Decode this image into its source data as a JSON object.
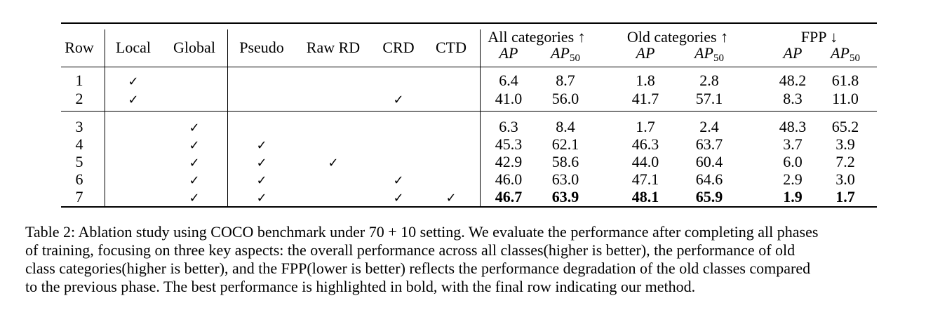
{
  "table": {
    "headers": {
      "row": "Row",
      "local": "Local",
      "global": "Global",
      "pseudo": "Pseudo",
      "raw_rd": "Raw RD",
      "crd": "CRD",
      "ctd": "CTD",
      "group_all": "All categories ↑",
      "group_old": "Old categories ↑",
      "group_fpp": "FPP ↓",
      "ap": "AP",
      "ap_sub": "50"
    },
    "check_glyph": "✓",
    "rows": [
      {
        "row": "1",
        "local": true,
        "global": false,
        "pseudo": false,
        "raw_rd": false,
        "crd": false,
        "ctd": false,
        "values": [
          "6.4",
          "8.7",
          "1.8",
          "2.8",
          "48.2",
          "61.8"
        ],
        "bold": false
      },
      {
        "row": "2",
        "local": true,
        "global": false,
        "pseudo": false,
        "raw_rd": false,
        "crd": true,
        "ctd": false,
        "values": [
          "41.0",
          "56.0",
          "41.7",
          "57.1",
          "8.3",
          "11.0"
        ],
        "bold": false
      },
      {
        "row": "3",
        "local": false,
        "global": true,
        "pseudo": false,
        "raw_rd": false,
        "crd": false,
        "ctd": false,
        "values": [
          "6.3",
          "8.4",
          "1.7",
          "2.4",
          "48.3",
          "65.2"
        ],
        "bold": false
      },
      {
        "row": "4",
        "local": false,
        "global": true,
        "pseudo": true,
        "raw_rd": false,
        "crd": false,
        "ctd": false,
        "values": [
          "45.3",
          "62.1",
          "46.3",
          "63.7",
          "3.7",
          "3.9"
        ],
        "bold": false
      },
      {
        "row": "5",
        "local": false,
        "global": true,
        "pseudo": true,
        "raw_rd": true,
        "crd": false,
        "ctd": false,
        "values": [
          "42.9",
          "58.6",
          "44.0",
          "60.4",
          "6.0",
          "7.2"
        ],
        "bold": false
      },
      {
        "row": "6",
        "local": false,
        "global": true,
        "pseudo": true,
        "raw_rd": false,
        "crd": true,
        "ctd": false,
        "values": [
          "46.0",
          "63.0",
          "47.1",
          "64.6",
          "2.9",
          "3.0"
        ],
        "bold": false
      },
      {
        "row": "7",
        "local": false,
        "global": true,
        "pseudo": true,
        "raw_rd": false,
        "crd": true,
        "ctd": true,
        "values": [
          "46.7",
          "63.9",
          "48.1",
          "65.9",
          "1.9",
          "1.7"
        ],
        "bold": true
      }
    ]
  },
  "caption": {
    "lines": [
      "Table 2: Ablation study using COCO benchmark under 70 + 10 setting. We evaluate the performance after completing all phases",
      "of training, focusing on three key aspects: the overall performance across all classes(higher is better), the performance of old",
      "class categories(higher is better), and the FPP(lower is better) reflects the performance degradation of the old classes compared",
      "to the previous phase. The best performance is highlighted in bold, with the final row indicating our method."
    ]
  }
}
